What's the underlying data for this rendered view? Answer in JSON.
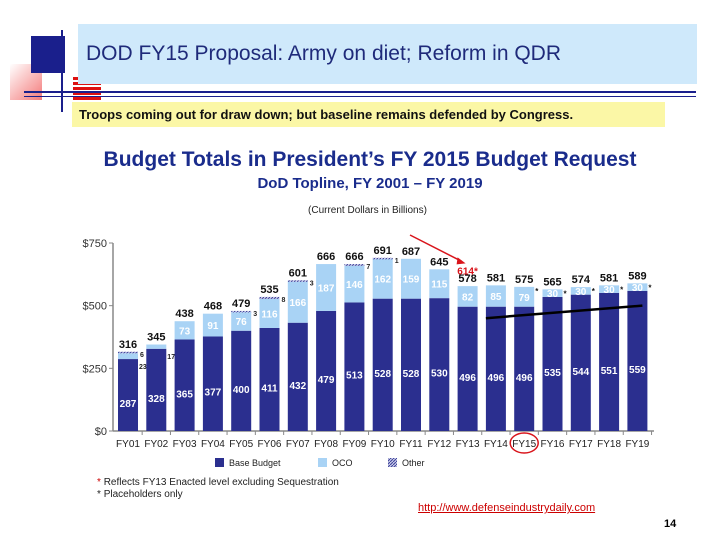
{
  "slide": {
    "title": "DOD FY15 Proposal:  Army on diet; Reform in QDR",
    "subtitle": "Troops coming out for draw down; but baseline remains defended by Congress.",
    "url": "http://www.defenseindustrydaily.com",
    "page_number": "14",
    "notes": [
      {
        "mark": "*",
        "text": "Reflects FY13 Enacted level excluding Sequestration"
      },
      {
        "mark": "*",
        "text": "Placeholders only"
      }
    ]
  },
  "chart_data": {
    "type": "bar",
    "stacked": true,
    "title": "Budget Totals in President’s FY 2015 Budget Request",
    "subtitle": "DoD Topline, FY 2001 – FY 2019",
    "units": "(Current Dollars in Billions)",
    "ylim": [
      0,
      750
    ],
    "yticks": [
      "$0",
      "$250",
      "$500",
      "$750"
    ],
    "ytick_values": [
      0,
      250,
      500,
      750
    ],
    "grid": false,
    "legend_placement": "bottom",
    "categories": [
      "FY01",
      "FY02",
      "FY03",
      "FY04",
      "FY05",
      "FY06",
      "FY07",
      "FY08",
      "FY09",
      "FY10",
      "FY11",
      "FY12",
      "FY13",
      "FY14",
      "FY15",
      "FY16",
      "FY17",
      "FY18",
      "FY19"
    ],
    "series": [
      {
        "name": "Base Budget",
        "color": "#2b2f8f",
        "values": [
          287,
          328,
          365,
          377,
          400,
          411,
          432,
          479,
          513,
          528,
          528,
          530,
          496,
          496,
          496,
          535,
          544,
          551,
          559
        ]
      },
      {
        "name": "OCO",
        "color": "#a9d3f5",
        "values": [
          23,
          17,
          73,
          91,
          76,
          116,
          166,
          187,
          146,
          162,
          159,
          115,
          82,
          85,
          79,
          30,
          30,
          30,
          30
        ]
      },
      {
        "name": "Other",
        "color": "#6a70b8",
        "values": [
          6,
          0,
          0,
          0,
          3,
          8,
          3,
          0,
          7,
          1,
          0,
          0,
          0,
          0,
          0,
          0,
          0,
          0,
          0
        ]
      }
    ],
    "totals": [
      "316",
      "345",
      "438",
      "468",
      "479",
      "535",
      "601",
      "666",
      "666",
      "691",
      "687",
      "645",
      "578",
      "581",
      "575",
      "565",
      "574",
      "581",
      "589"
    ],
    "oco_placeholder_marks": [
      false,
      false,
      false,
      false,
      false,
      false,
      false,
      false,
      false,
      false,
      false,
      false,
      false,
      false,
      true,
      true,
      true,
      true,
      true
    ],
    "annotations": {
      "fy13_enacted": "614*",
      "highlighted_category": "FY15",
      "highlight_color": "#d9141b",
      "arrow_color": "#d9141b",
      "trend_line": {
        "from": {
          "category": "FY14",
          "value": 450
        },
        "to": {
          "category": "FY19",
          "value": 500
        },
        "color": "#000000"
      }
    }
  }
}
